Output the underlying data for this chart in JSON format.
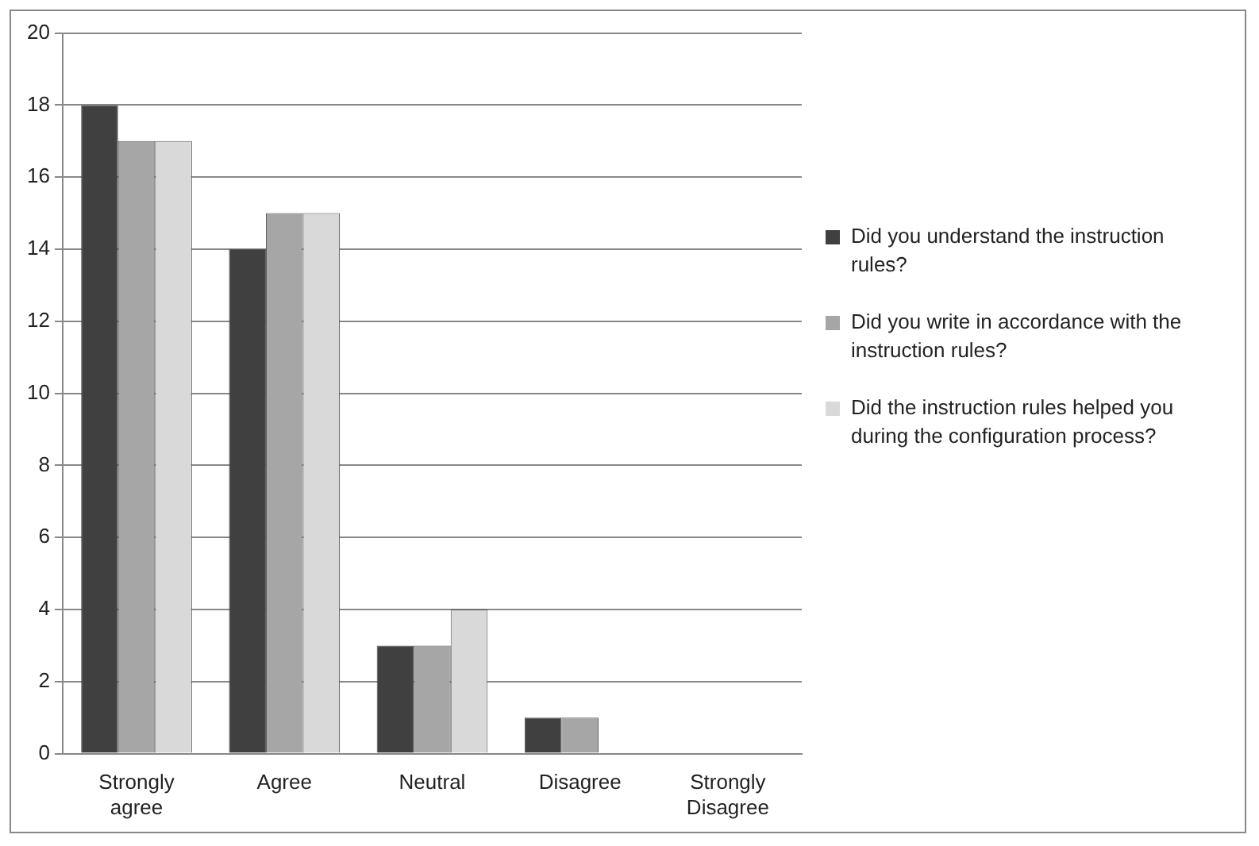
{
  "chart_data": {
    "type": "bar",
    "categories": [
      "Strongly agree",
      "Agree",
      "Neutral",
      "Disagree",
      "Strongly Disagree"
    ],
    "series": [
      {
        "name": "Did you understand the instruction rules?",
        "color": "#404040",
        "values": [
          18,
          14,
          3,
          1,
          0
        ]
      },
      {
        "name": "Did you write in accordance with the instruction rules?",
        "color": "#a6a6a6",
        "values": [
          17,
          15,
          3,
          1,
          0
        ]
      },
      {
        "name": "Did the instruction rules helped you during the configuration process?",
        "color": "#d9d9d9",
        "values": [
          17,
          15,
          4,
          0,
          0
        ]
      }
    ],
    "ylim": [
      0,
      20
    ],
    "yticks": [
      0,
      2,
      4,
      6,
      8,
      10,
      12,
      14,
      16,
      18,
      20
    ],
    "grid": "y",
    "legend": "right"
  }
}
